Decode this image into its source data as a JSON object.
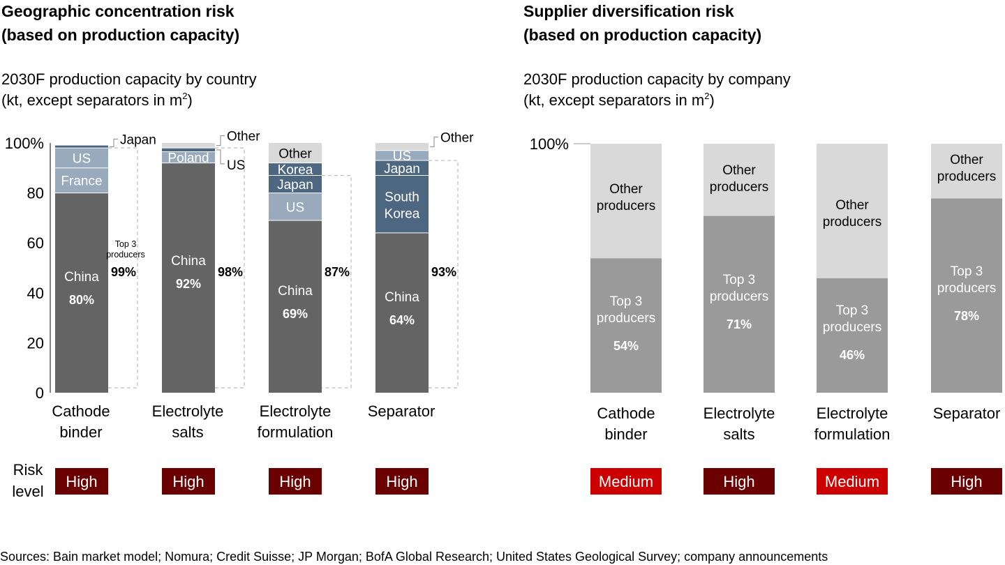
{
  "left": {
    "title_line1": "Geographic concentration risk",
    "title_line2": "(based on production capacity)",
    "subtitle_line1": "2030F production capacity by country",
    "subtitle_line2_pre": "(kt, except separators in m",
    "subtitle_sup": "2",
    "subtitle_line2_post": ")"
  },
  "right": {
    "title_line1": "Supplier diversification risk",
    "title_line2": "(based on production capacity)",
    "subtitle_line1": "2030F production capacity by company",
    "subtitle_line2_pre": "(kt, except separators in m",
    "subtitle_sup": "2",
    "subtitle_line2_post": ")"
  },
  "risk_label_line1": "Risk",
  "risk_label_line2": "level",
  "source": "Sources: Bain market model; Nomura; Credit Suisse; JP Morgan; BofA Global Research; United States Geological Survey; company announcements",
  "colors": {
    "china": "#646464",
    "blue_dark": "#4d6780",
    "blue_light": "#98aabb",
    "light_gray": "#d9d9d9",
    "mid_gray": "#9a9a9a",
    "risk_high": "#6b0000",
    "risk_medium": "#cc0000"
  },
  "chart_data": [
    {
      "type": "bar",
      "stacked": true,
      "ylim": [
        0,
        100
      ],
      "yticks": [
        "0",
        "20",
        "40",
        "60",
        "80",
        "100%"
      ],
      "top3_label_line1": "Top 3",
      "top3_label_line2": "producers",
      "categories": [
        {
          "label_lines": [
            "Cathode",
            "binder"
          ],
          "segments": [
            {
              "name": "China",
              "value": 80,
              "value_label": "80%",
              "color": "china"
            },
            {
              "name": "France",
              "value": 10,
              "color": "blue_light"
            },
            {
              "name": "US",
              "value": 8,
              "color": "blue_light"
            },
            {
              "name": "Japan",
              "value": 1,
              "color": "blue_dark"
            }
          ],
          "top3_total": "99%",
          "risk": "High"
        },
        {
          "label_lines": [
            "Electrolyte",
            "salts"
          ],
          "segments": [
            {
              "name": "China",
              "value": 92,
              "value_label": "92%",
              "color": "china"
            },
            {
              "name": "Poland",
              "value": 4.5,
              "color": "blue_light"
            },
            {
              "name": "US",
              "value": 1.5,
              "color": "blue_dark"
            },
            {
              "name": "Other",
              "value": 2,
              "color": "light_gray"
            }
          ],
          "top3_total": "98%",
          "risk": "High"
        },
        {
          "label_lines": [
            "Electrolyte",
            "formulation"
          ],
          "segments": [
            {
              "name": "China",
              "value": 69,
              "value_label": "69%",
              "color": "china"
            },
            {
              "name": "US",
              "value": 11,
              "color": "blue_light"
            },
            {
              "name": "Japan",
              "value": 7,
              "color": "blue_dark"
            },
            {
              "name": "Korea",
              "value": 5,
              "color": "blue_dark"
            },
            {
              "name": "Other",
              "value": 8,
              "color": "light_gray"
            }
          ],
          "top3_total": "87%",
          "risk": "High"
        },
        {
          "label_lines": [
            "Separator"
          ],
          "segments": [
            {
              "name": "China",
              "value": 64,
              "value_label": "64%",
              "color": "china"
            },
            {
              "name": "South Korea",
              "value": 23,
              "color": "blue_dark"
            },
            {
              "name": "Japan",
              "value": 6,
              "color": "blue_dark"
            },
            {
              "name": "US",
              "value": 4,
              "color": "blue_light"
            },
            {
              "name": "Other",
              "value": 3,
              "color": "light_gray"
            }
          ],
          "top3_total": "93%",
          "risk": "High"
        }
      ]
    },
    {
      "type": "bar",
      "stacked": true,
      "ylim": [
        0,
        100
      ],
      "yticks": [
        "100%"
      ],
      "categories": [
        {
          "label_lines": [
            "Cathode",
            "binder"
          ],
          "segments": [
            {
              "name": "Top 3 producers",
              "value": 54,
              "value_label": "54%",
              "color": "mid_gray"
            },
            {
              "name": "Other producers",
              "value": 46,
              "color": "light_gray"
            }
          ],
          "risk": "Medium"
        },
        {
          "label_lines": [
            "Electrolyte",
            "salts"
          ],
          "segments": [
            {
              "name": "Top 3 producers",
              "value": 71,
              "value_label": "71%",
              "color": "mid_gray"
            },
            {
              "name": "Other producers",
              "value": 29,
              "color": "light_gray"
            }
          ],
          "risk": "High"
        },
        {
          "label_lines": [
            "Electrolyte",
            "formulation"
          ],
          "segments": [
            {
              "name": "Top 3 producers",
              "value": 46,
              "value_label": "46%",
              "color": "mid_gray"
            },
            {
              "name": "Other producers",
              "value": 54,
              "color": "light_gray"
            }
          ],
          "risk": "Medium"
        },
        {
          "label_lines": [
            "Separator"
          ],
          "segments": [
            {
              "name": "Top 3 producers",
              "value": 78,
              "value_label": "78%",
              "color": "mid_gray"
            },
            {
              "name": "Other producers",
              "value": 22,
              "color": "light_gray"
            }
          ],
          "risk": "High"
        }
      ]
    }
  ]
}
